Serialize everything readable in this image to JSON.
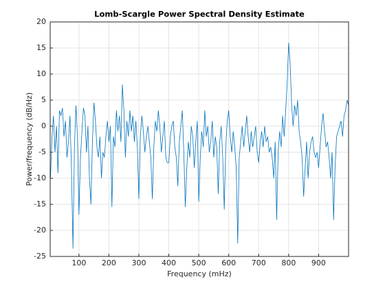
{
  "chart_data": {
    "type": "line",
    "title": "Lomb-Scargle Power Spectral Density Estimate",
    "xlabel": "Frequency (mHz)",
    "ylabel": "Power/frequency (dB/Hz)",
    "xlim": [
      4,
      1000
    ],
    "ylim": [
      -25,
      20
    ],
    "xticks": [
      100,
      200,
      300,
      400,
      500,
      600,
      700,
      800,
      900
    ],
    "yticks": [
      -25,
      -20,
      -15,
      -10,
      -5,
      0,
      5,
      10,
      15,
      20
    ],
    "grid": true,
    "x": [
      5,
      10,
      15,
      20,
      25,
      30,
      35,
      40,
      45,
      50,
      55,
      60,
      65,
      70,
      75,
      80,
      85,
      90,
      95,
      100,
      105,
      110,
      115,
      120,
      125,
      130,
      135,
      140,
      145,
      150,
      155,
      160,
      165,
      170,
      175,
      180,
      185,
      190,
      195,
      200,
      205,
      210,
      215,
      220,
      225,
      230,
      235,
      240,
      245,
      250,
      255,
      260,
      265,
      270,
      275,
      280,
      285,
      290,
      295,
      300,
      305,
      310,
      315,
      320,
      325,
      330,
      335,
      340,
      345,
      350,
      355,
      360,
      365,
      370,
      375,
      380,
      385,
      390,
      395,
      400,
      405,
      410,
      415,
      420,
      425,
      430,
      435,
      440,
      445,
      450,
      455,
      460,
      465,
      470,
      475,
      480,
      485,
      490,
      495,
      500,
      505,
      510,
      515,
      520,
      525,
      530,
      535,
      540,
      545,
      550,
      555,
      560,
      565,
      570,
      575,
      580,
      585,
      590,
      595,
      600,
      605,
      610,
      615,
      620,
      625,
      630,
      635,
      640,
      645,
      650,
      655,
      660,
      665,
      670,
      675,
      680,
      685,
      690,
      695,
      700,
      705,
      710,
      715,
      720,
      725,
      730,
      735,
      740,
      745,
      750,
      755,
      760,
      765,
      770,
      775,
      780,
      785,
      790,
      795,
      800,
      805,
      810,
      815,
      820,
      825,
      830,
      835,
      840,
      845,
      850,
      855,
      860,
      865,
      870,
      875,
      880,
      885,
      890,
      895,
      900,
      905,
      910,
      915,
      920,
      925,
      930,
      935,
      940,
      945,
      950,
      955,
      960,
      965,
      970,
      975,
      980,
      985,
      990,
      995,
      1000
    ],
    "series": [
      {
        "color": "#0072bd",
        "values": [
          -10,
          -2,
          2,
          -5,
          0,
          -9,
          3,
          2,
          3.5,
          -2,
          1,
          -6,
          -3,
          2,
          -8,
          -23.5,
          -4,
          4,
          -2,
          -17,
          -6,
          -1,
          3.5,
          2,
          -5,
          0,
          -10,
          -15,
          -3,
          4.5,
          1,
          -4,
          -6,
          -2,
          -10,
          -5,
          -6,
          -2,
          1,
          -3,
          0,
          -15.5,
          -2,
          -4,
          3,
          -1,
          2,
          -3,
          8,
          3,
          -6,
          1,
          -2,
          3,
          -1,
          2,
          -3,
          1,
          -4,
          -14,
          -2,
          2,
          -1,
          -5,
          -2,
          0,
          -3,
          -6,
          -14,
          -4,
          1,
          -1,
          3,
          0,
          -5,
          -2,
          1,
          -6,
          -7,
          -7,
          -2,
          0,
          1,
          -4,
          -6,
          -11.5,
          -3,
          0,
          3,
          -5,
          -15.5,
          -8,
          -3,
          -6,
          0,
          -2,
          -8,
          -3,
          1,
          -14.5,
          -6,
          -1,
          -4,
          3,
          -2,
          0,
          -5,
          -3,
          1,
          -6,
          -2,
          -4,
          -13,
          -3,
          0,
          -6,
          -16,
          -4,
          1,
          3,
          -2,
          -5,
          -1,
          -4,
          -8,
          -22.5,
          -6,
          -3,
          0,
          -4,
          -1,
          2,
          -2,
          -5,
          -1,
          -4,
          -2,
          0,
          -5,
          -7,
          -3,
          -1,
          -4,
          0,
          -3,
          -2,
          -5,
          -4,
          -6,
          -10,
          -3,
          -18,
          -5,
          -1,
          -4,
          2,
          -2,
          3,
          8,
          16,
          12,
          4,
          0,
          4,
          2,
          5,
          -1,
          -3,
          -6,
          -13.5,
          -8,
          -3,
          -10,
          -5,
          -3,
          -2,
          -5,
          -6,
          -5,
          -8,
          -4,
          0,
          2.5,
          -1,
          -4,
          -3,
          -6,
          -10,
          -5,
          -18,
          -8,
          -2,
          -1,
          0,
          1,
          -2,
          2,
          3,
          5,
          4
        ]
      }
    ]
  }
}
